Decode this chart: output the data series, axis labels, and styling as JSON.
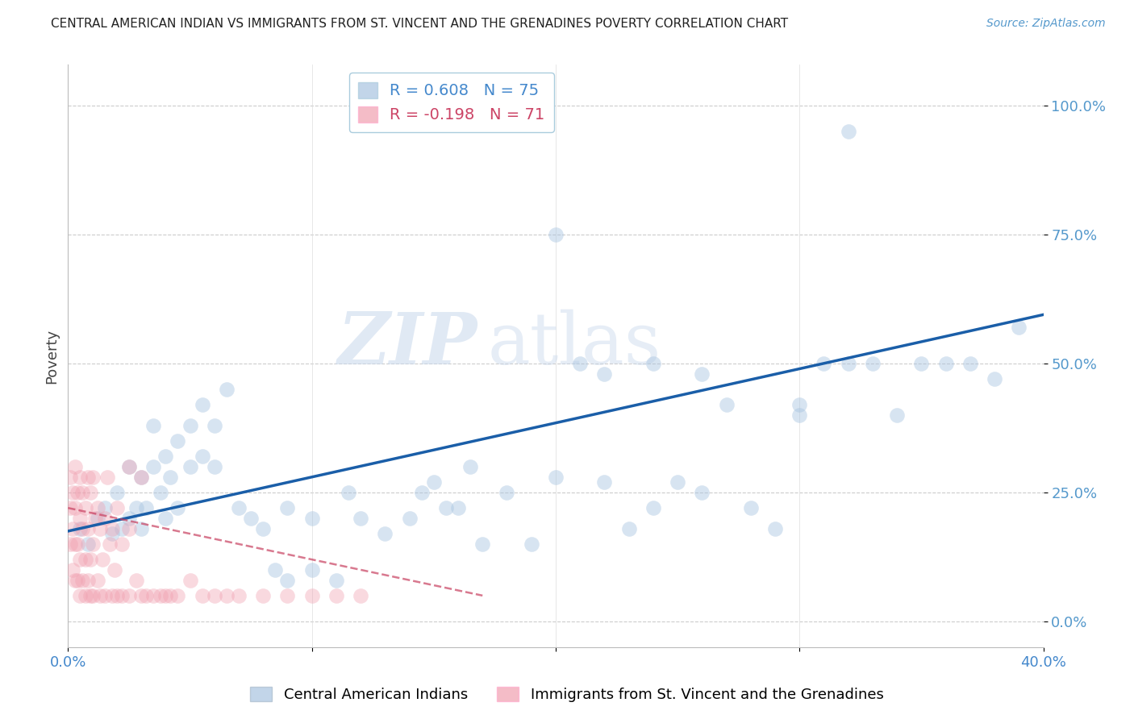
{
  "title": "CENTRAL AMERICAN INDIAN VS IMMIGRANTS FROM ST. VINCENT AND THE GRENADINES POVERTY CORRELATION CHART",
  "source": "Source: ZipAtlas.com",
  "ylabel": "Poverty",
  "r_blue": 0.608,
  "n_blue": 75,
  "r_pink": -0.198,
  "n_pink": 71,
  "legend_blue": "Central American Indians",
  "legend_pink": "Immigrants from St. Vincent and the Grenadines",
  "blue_color": "#A8C4E0",
  "pink_color": "#F0A0B0",
  "blue_line_color": "#1A5EA8",
  "pink_line_color": "#C84060",
  "background_color": "#FFFFFF",
  "watermark_zip": "ZIP",
  "watermark_atlas": "atlas",
  "ytick_labels": [
    "0.0%",
    "25.0%",
    "50.0%",
    "75.0%",
    "100.0%"
  ],
  "ytick_values": [
    0,
    0.25,
    0.5,
    0.75,
    1.0
  ],
  "xlim": [
    0,
    0.4
  ],
  "ylim": [
    -0.05,
    1.08
  ],
  "blue_x": [
    0.005,
    0.008,
    0.012,
    0.015,
    0.018,
    0.02,
    0.022,
    0.025,
    0.025,
    0.028,
    0.03,
    0.03,
    0.032,
    0.035,
    0.035,
    0.038,
    0.04,
    0.04,
    0.042,
    0.045,
    0.045,
    0.05,
    0.05,
    0.055,
    0.055,
    0.06,
    0.06,
    0.065,
    0.07,
    0.075,
    0.08,
    0.085,
    0.09,
    0.09,
    0.1,
    0.1,
    0.11,
    0.115,
    0.12,
    0.13,
    0.14,
    0.145,
    0.15,
    0.155,
    0.16,
    0.165,
    0.17,
    0.18,
    0.19,
    0.2,
    0.21,
    0.22,
    0.23,
    0.24,
    0.25,
    0.26,
    0.27,
    0.28,
    0.29,
    0.3,
    0.31,
    0.32,
    0.33,
    0.34,
    0.35,
    0.36,
    0.37,
    0.38,
    0.39,
    0.2,
    0.22,
    0.24,
    0.26,
    0.3,
    0.32
  ],
  "blue_y": [
    0.18,
    0.15,
    0.2,
    0.22,
    0.17,
    0.25,
    0.18,
    0.2,
    0.3,
    0.22,
    0.18,
    0.28,
    0.22,
    0.3,
    0.38,
    0.25,
    0.2,
    0.32,
    0.28,
    0.22,
    0.35,
    0.3,
    0.38,
    0.32,
    0.42,
    0.38,
    0.3,
    0.45,
    0.22,
    0.2,
    0.18,
    0.1,
    0.22,
    0.08,
    0.2,
    0.1,
    0.08,
    0.25,
    0.2,
    0.17,
    0.2,
    0.25,
    0.27,
    0.22,
    0.22,
    0.3,
    0.15,
    0.25,
    0.15,
    0.28,
    0.5,
    0.27,
    0.18,
    0.22,
    0.27,
    0.25,
    0.42,
    0.22,
    0.18,
    0.42,
    0.5,
    0.5,
    0.5,
    0.4,
    0.5,
    0.5,
    0.5,
    0.47,
    0.57,
    0.75,
    0.48,
    0.5,
    0.48,
    0.4,
    0.95
  ],
  "pink_x": [
    0.001,
    0.001,
    0.001,
    0.002,
    0.002,
    0.002,
    0.003,
    0.003,
    0.003,
    0.003,
    0.004,
    0.004,
    0.004,
    0.005,
    0.005,
    0.005,
    0.005,
    0.006,
    0.006,
    0.006,
    0.007,
    0.007,
    0.007,
    0.008,
    0.008,
    0.008,
    0.009,
    0.009,
    0.009,
    0.01,
    0.01,
    0.01,
    0.011,
    0.012,
    0.012,
    0.013,
    0.013,
    0.014,
    0.015,
    0.015,
    0.016,
    0.017,
    0.018,
    0.018,
    0.019,
    0.02,
    0.02,
    0.022,
    0.022,
    0.025,
    0.025,
    0.028,
    0.03,
    0.032,
    0.035,
    0.038,
    0.04,
    0.042,
    0.045,
    0.05,
    0.055,
    0.06,
    0.065,
    0.07,
    0.08,
    0.09,
    0.1,
    0.11,
    0.12,
    0.025,
    0.03
  ],
  "pink_y": [
    0.15,
    0.22,
    0.28,
    0.1,
    0.18,
    0.25,
    0.08,
    0.15,
    0.22,
    0.3,
    0.08,
    0.15,
    0.25,
    0.05,
    0.12,
    0.2,
    0.28,
    0.08,
    0.18,
    0.25,
    0.05,
    0.12,
    0.22,
    0.08,
    0.18,
    0.28,
    0.05,
    0.12,
    0.25,
    0.05,
    0.15,
    0.28,
    0.2,
    0.08,
    0.22,
    0.05,
    0.18,
    0.12,
    0.05,
    0.2,
    0.28,
    0.15,
    0.05,
    0.18,
    0.1,
    0.05,
    0.22,
    0.05,
    0.15,
    0.05,
    0.18,
    0.08,
    0.05,
    0.05,
    0.05,
    0.05,
    0.05,
    0.05,
    0.05,
    0.08,
    0.05,
    0.05,
    0.05,
    0.05,
    0.05,
    0.05,
    0.05,
    0.05,
    0.05,
    0.3,
    0.28
  ],
  "blue_line_x": [
    0.0,
    0.4
  ],
  "blue_line_y": [
    0.175,
    0.595
  ],
  "pink_line_x": [
    0.0,
    0.17
  ],
  "pink_line_y": [
    0.22,
    0.05
  ]
}
